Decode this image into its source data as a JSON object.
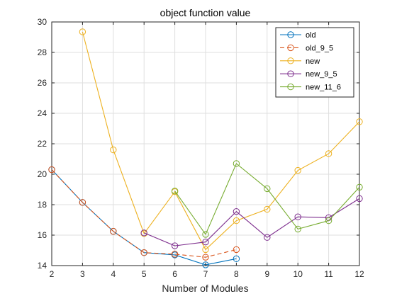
{
  "chart_data": {
    "type": "line",
    "title": "object function value",
    "xlabel": "Number of Modules",
    "ylabel": "",
    "xlim": [
      2,
      12
    ],
    "ylim": [
      14,
      30
    ],
    "xticks": [
      "2",
      "3",
      "4",
      "5",
      "6",
      "7",
      "8",
      "9",
      "10",
      "11",
      "12"
    ],
    "yticks": [
      "14",
      "16",
      "18",
      "20",
      "22",
      "24",
      "26",
      "28",
      "30"
    ],
    "grid": true,
    "legend_position": "top-right",
    "series": [
      {
        "name": "old",
        "color": "#0072BD",
        "line": "solid",
        "marker": "circle",
        "x": [
          2,
          3,
          4,
          5,
          6,
          7,
          8
        ],
        "y": [
          20.3,
          18.15,
          16.25,
          14.85,
          14.7,
          14.05,
          14.45
        ]
      },
      {
        "name": "old_9_5",
        "color": "#D95319",
        "line": "dashed",
        "marker": "circle",
        "x": [
          2,
          3,
          4,
          5,
          6,
          7,
          8
        ],
        "y": [
          20.3,
          18.15,
          16.25,
          14.85,
          14.75,
          14.55,
          15.05
        ]
      },
      {
        "name": "new",
        "color": "#EDB120",
        "line": "solid",
        "marker": "circle",
        "x": [
          3,
          4,
          5,
          6,
          7,
          8,
          9,
          10,
          11,
          12
        ],
        "y": [
          29.35,
          21.6,
          16.1,
          18.85,
          15.05,
          16.95,
          17.7,
          20.25,
          21.35,
          23.45
        ]
      },
      {
        "name": "new_9_5",
        "color": "#7E2F8E",
        "line": "solid",
        "marker": "circle",
        "x": [
          5,
          6,
          7,
          8,
          9,
          10,
          11,
          12
        ],
        "y": [
          16.15,
          15.3,
          15.55,
          17.55,
          15.85,
          17.2,
          17.15,
          18.4
        ]
      },
      {
        "name": "new_11_6",
        "color": "#77AC30",
        "line": "solid",
        "marker": "circle",
        "x": [
          6,
          7,
          8,
          9,
          10,
          11,
          12
        ],
        "y": [
          18.9,
          16.05,
          20.7,
          19.05,
          16.4,
          16.95,
          19.15
        ]
      }
    ]
  }
}
